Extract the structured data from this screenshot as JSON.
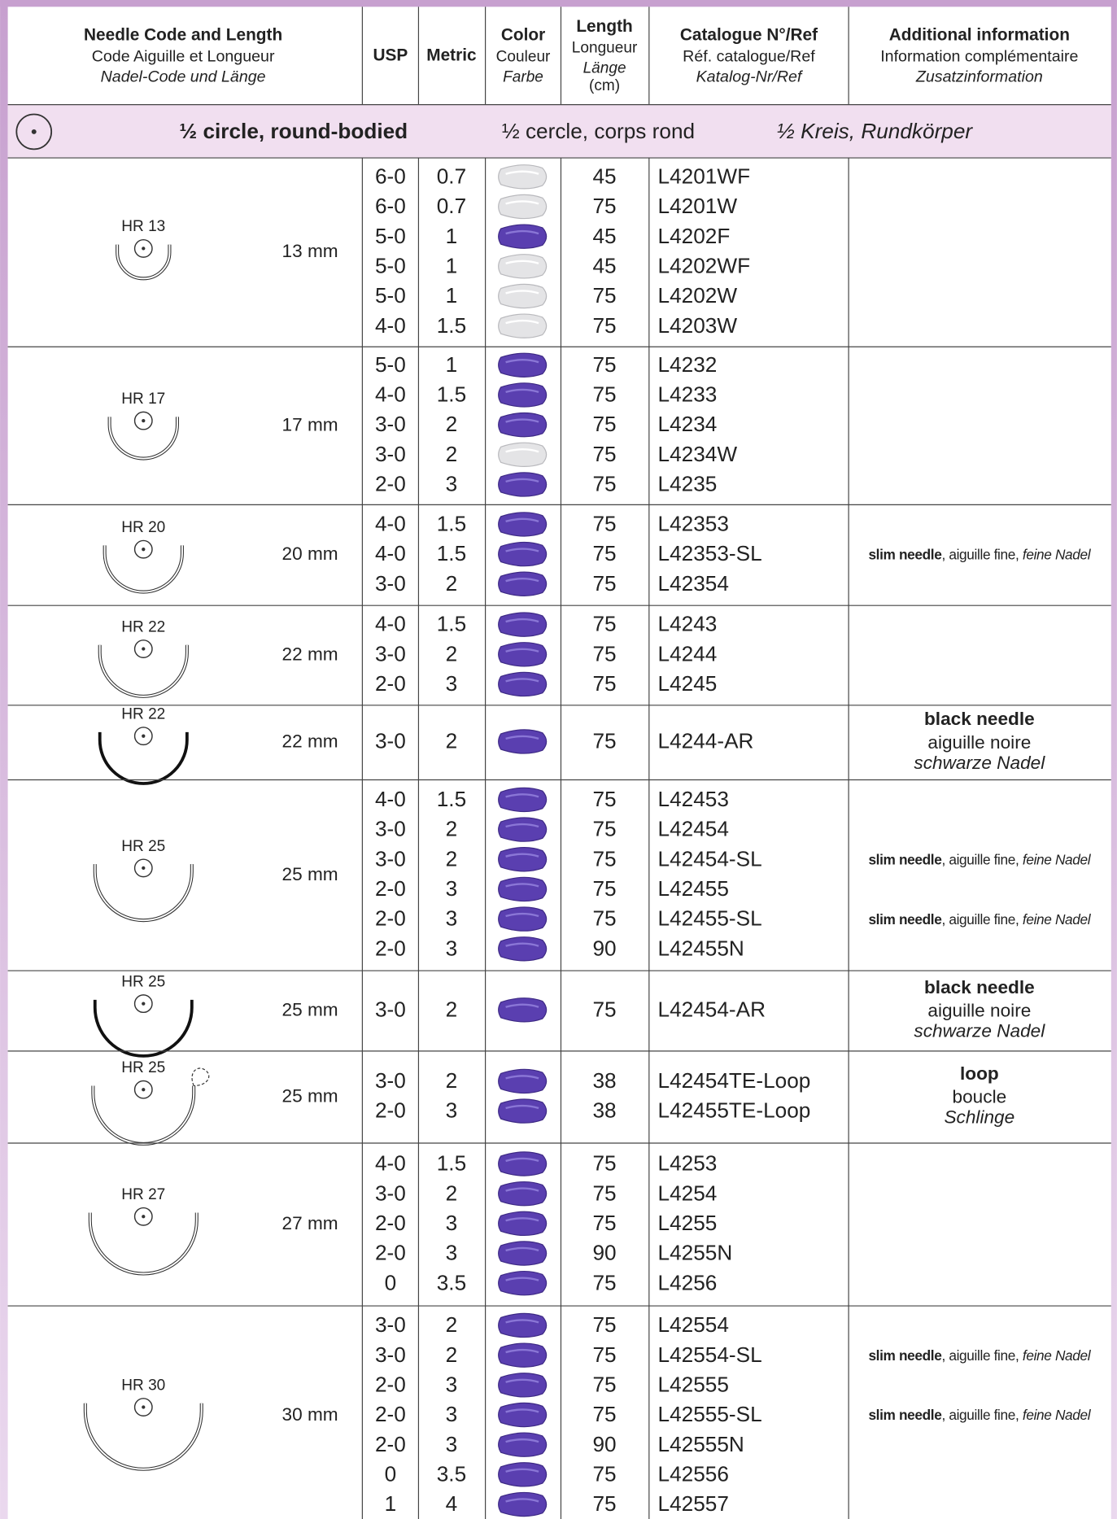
{
  "header": {
    "columns": [
      [
        "Needle Code and Length",
        "Code Aiguille et Longueur",
        "Nadel-Code und Länge"
      ],
      [
        "USP"
      ],
      [
        "Metric"
      ],
      [
        "Color",
        "Couleur",
        "Farbe"
      ],
      [
        "Length",
        "Longueur",
        "Länge",
        "(cm)"
      ],
      [
        "Catalogue N°/Ref",
        "Réf. catalogue/Ref",
        "Katalog-Nr/Ref"
      ],
      [
        "Additional information",
        "Information complémentaire",
        "Zusatzinformation"
      ]
    ]
  },
  "section": {
    "en": "½ circle, round-bodied",
    "fr": "½ cercle, corps rond",
    "de": "½ Kreis, Rundkörper"
  },
  "groups": [
    {
      "code": "HR 13",
      "length": "13 mm",
      "rows": [
        {
          "usp": "6-0",
          "metric": "0.7",
          "color": "white",
          "length": "45",
          "ref": "L4201WF"
        },
        {
          "usp": "6-0",
          "metric": "0.7",
          "color": "white",
          "length": "75",
          "ref": "L4201W"
        },
        {
          "usp": "5-0",
          "metric": "1",
          "color": "violet",
          "length": "45",
          "ref": "L4202F"
        },
        {
          "usp": "5-0",
          "metric": "1",
          "color": "white",
          "length": "45",
          "ref": "L4202WF"
        },
        {
          "usp": "5-0",
          "metric": "1",
          "color": "white",
          "length": "75",
          "ref": "L4202W"
        },
        {
          "usp": "4-0",
          "metric": "1.5",
          "color": "white",
          "length": "75",
          "ref": "L4203W"
        }
      ]
    },
    {
      "code": "HR 17",
      "length": "17 mm",
      "rows": [
        {
          "usp": "5-0",
          "metric": "1",
          "color": "violet",
          "length": "75",
          "ref": "L4232"
        },
        {
          "usp": "4-0",
          "metric": "1.5",
          "color": "violet",
          "length": "75",
          "ref": "L4233"
        },
        {
          "usp": "3-0",
          "metric": "2",
          "color": "violet",
          "length": "75",
          "ref": "L4234"
        },
        {
          "usp": "3-0",
          "metric": "2",
          "color": "white",
          "length": "75",
          "ref": "L4234W"
        },
        {
          "usp": "2-0",
          "metric": "3",
          "color": "violet",
          "length": "75",
          "ref": "L4235"
        }
      ]
    },
    {
      "code": "HR 20",
      "length": "20 mm",
      "rows": [
        {
          "usp": "4-0",
          "metric": "1.5",
          "color": "violet",
          "length": "75",
          "ref": "L42353"
        },
        {
          "usp": "4-0",
          "metric": "1.5",
          "color": "violet",
          "length": "75",
          "ref": "L42353-SL",
          "note": [
            "slim needle",
            ", aiguille fine, ",
            "feine Nadel"
          ]
        },
        {
          "usp": "3-0",
          "metric": "2",
          "color": "violet",
          "length": "75",
          "ref": "L42354"
        }
      ]
    },
    {
      "code": "HR 22",
      "length": "22 mm",
      "rows": [
        {
          "usp": "4-0",
          "metric": "1.5",
          "color": "violet",
          "length": "75",
          "ref": "L4243"
        },
        {
          "usp": "3-0",
          "metric": "2",
          "color": "violet",
          "length": "75",
          "ref": "L4244"
        },
        {
          "usp": "2-0",
          "metric": "3",
          "color": "violet",
          "length": "75",
          "ref": "L4245"
        }
      ]
    },
    {
      "code": "HR 22",
      "length": "22 mm",
      "info": [
        "black needle",
        "aiguille noire",
        "schwarze Nadel"
      ],
      "rows": [
        {
          "usp": "3-0",
          "metric": "2",
          "color": "violet",
          "length": "75",
          "ref": "L4244-AR"
        }
      ]
    },
    {
      "code": "HR 25",
      "length": "25 mm",
      "rows": [
        {
          "usp": "4-0",
          "metric": "1.5",
          "color": "violet",
          "length": "75",
          "ref": "L42453"
        },
        {
          "usp": "3-0",
          "metric": "2",
          "color": "violet",
          "length": "75",
          "ref": "L42454"
        },
        {
          "usp": "3-0",
          "metric": "2",
          "color": "violet",
          "length": "75",
          "ref": "L42454-SL",
          "note": [
            "slim needle",
            ", aiguille fine, ",
            "feine Nadel"
          ]
        },
        {
          "usp": "2-0",
          "metric": "3",
          "color": "violet",
          "length": "75",
          "ref": "L42455"
        },
        {
          "usp": "2-0",
          "metric": "3",
          "color": "violet",
          "length": "75",
          "ref": "L42455-SL",
          "note": [
            "slim needle",
            ", aiguille fine, ",
            "feine Nadel"
          ]
        },
        {
          "usp": "2-0",
          "metric": "3",
          "color": "violet",
          "length": "90",
          "ref": "L42455N"
        }
      ]
    },
    {
      "code": "HR 25",
      "length": "25 mm",
      "info": [
        "black needle",
        "aiguille noire",
        "schwarze Nadel"
      ],
      "rows": [
        {
          "usp": "3-0",
          "metric": "2",
          "color": "violet",
          "length": "75",
          "ref": "L42454-AR"
        }
      ]
    },
    {
      "code": "HR 25",
      "length": "25 mm",
      "info": [
        "loop",
        "boucle",
        "Schlinge"
      ],
      "rows": [
        {
          "usp": "3-0",
          "metric": "2",
          "color": "violet",
          "length": "38",
          "ref": "L42454TE-Loop"
        },
        {
          "usp": "2-0",
          "metric": "3",
          "color": "violet",
          "length": "38",
          "ref": "L42455TE-Loop"
        }
      ]
    },
    {
      "code": "HR 27",
      "length": "27 mm",
      "rows": [
        {
          "usp": "4-0",
          "metric": "1.5",
          "color": "violet",
          "length": "75",
          "ref": "L4253"
        },
        {
          "usp": "3-0",
          "metric": "2",
          "color": "violet",
          "length": "75",
          "ref": "L4254"
        },
        {
          "usp": "2-0",
          "metric": "3",
          "color": "violet",
          "length": "75",
          "ref": "L4255"
        },
        {
          "usp": "2-0",
          "metric": "3",
          "color": "violet",
          "length": "90",
          "ref": "L4255N"
        },
        {
          "usp": "0",
          "metric": "3.5",
          "color": "violet",
          "length": "75",
          "ref": "L4256"
        }
      ]
    },
    {
      "code": "HR 30",
      "length": "30 mm",
      "rows": [
        {
          "usp": "3-0",
          "metric": "2",
          "color": "violet",
          "length": "75",
          "ref": "L42554"
        },
        {
          "usp": "3-0",
          "metric": "2",
          "color": "violet",
          "length": "75",
          "ref": "L42554-SL",
          "note": [
            "slim needle",
            ", aiguille fine, ",
            "feine Nadel"
          ]
        },
        {
          "usp": "2-0",
          "metric": "3",
          "color": "violet",
          "length": "75",
          "ref": "L42555"
        },
        {
          "usp": "2-0",
          "metric": "3",
          "color": "violet",
          "length": "75",
          "ref": "L42555-SL",
          "note": [
            "slim needle",
            ", aiguille fine, ",
            "feine Nadel"
          ]
        },
        {
          "usp": "2-0",
          "metric": "3",
          "color": "violet",
          "length": "90",
          "ref": "L42555N"
        },
        {
          "usp": "0",
          "metric": "3.5",
          "color": "violet",
          "length": "75",
          "ref": "L42556"
        },
        {
          "usp": "1",
          "metric": "4",
          "color": "violet",
          "length": "75",
          "ref": "L42557"
        }
      ]
    }
  ]
}
